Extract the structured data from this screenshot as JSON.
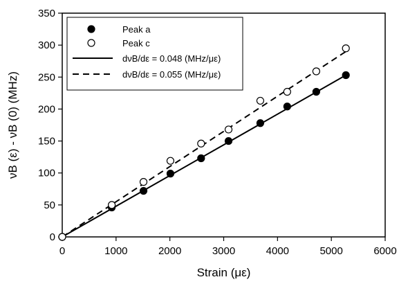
{
  "chart_data": {
    "type": "scatter",
    "title": "",
    "xlabel": "Strain (με)",
    "ylabel": "νB (ε) - νB (0) (MHz)",
    "xlim": [
      0,
      6000
    ],
    "ylim": [
      0,
      350
    ],
    "xticks": [
      "0",
      "1000",
      "2000",
      "3000",
      "4000",
      "5000",
      "6000"
    ],
    "yticks": [
      "0",
      "50",
      "100",
      "150",
      "200",
      "250",
      "300",
      "350"
    ],
    "grid": false,
    "legend_position": "top-left",
    "series": [
      {
        "name": "Peak a",
        "marker": "filled-circle",
        "x": [
          0,
          920,
          1510,
          2010,
          2580,
          3090,
          3680,
          4180,
          4720,
          5270
        ],
        "y": [
          0,
          46,
          72,
          99,
          123,
          150,
          178,
          204,
          227,
          253
        ]
      },
      {
        "name": "Peak c",
        "marker": "open-circle",
        "x": [
          0,
          920,
          1510,
          2010,
          2580,
          3090,
          3680,
          4180,
          4720,
          5270
        ],
        "y": [
          0,
          50,
          86,
          119,
          146,
          168,
          213,
          227,
          259,
          295
        ]
      },
      {
        "name": "dνB/dε = 0.048 (MHz/με)",
        "style": "solid-line",
        "x": [
          0,
          5270
        ],
        "y": [
          0,
          253
        ]
      },
      {
        "name": "dνB/dε = 0.055 (MHz/με)",
        "style": "dashed-line",
        "x": [
          0,
          5270
        ],
        "y": [
          0,
          290
        ]
      }
    ]
  }
}
